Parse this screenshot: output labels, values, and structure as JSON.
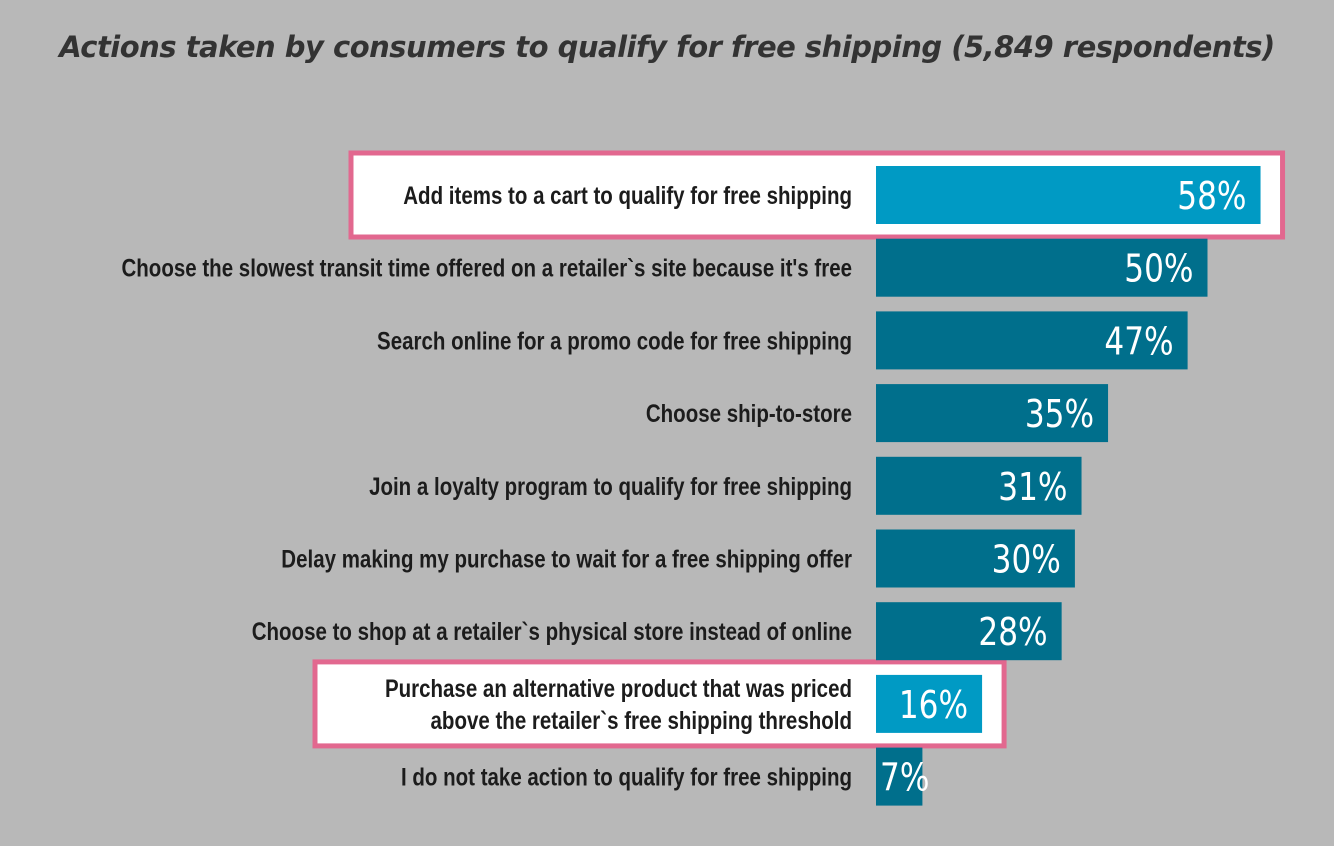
{
  "chart_data": {
    "type": "bar",
    "orientation": "horizontal",
    "title": "Actions taken by consumers to qualify for free shipping (5,849 respondents)",
    "categories": [
      "Add items to a cart to qualify for free shipping",
      "Choose the slowest transit time offered on a retailer`s site because it's free",
      "Search online for a promo code for free shipping",
      "Choose ship-to-store",
      "Join a loyalty program to qualify for free shipping",
      "Delay making my purchase to wait for a free shipping offer",
      "Choose to shop at a retailer`s physical store instead of online",
      "Purchase an alternative product that was priced above the retailer`s free shipping threshold",
      "I do not take action to qualify for free shipping"
    ],
    "label_lines": [
      [
        "Add items to a cart to qualify for free shipping"
      ],
      [
        "Choose the slowest transit time offered on a retailer`s site because it's free"
      ],
      [
        "Search online for a promo code for free shipping"
      ],
      [
        "Choose ship-to-store"
      ],
      [
        "Join a loyalty program to qualify for free shipping"
      ],
      [
        "Delay making my purchase to wait for a free shipping offer"
      ],
      [
        "Choose to shop at a retailer`s physical store instead of online"
      ],
      [
        "Purchase an alternative product that was priced",
        "above the retailer`s free shipping threshold"
      ],
      [
        "I do not take action to qualify for free shipping"
      ]
    ],
    "values": [
      58,
      50,
      47,
      35,
      31,
      30,
      28,
      16,
      7
    ],
    "value_labels": [
      "58%",
      "50%",
      "47%",
      "35%",
      "31%",
      "30%",
      "28%",
      "16%",
      "7%"
    ],
    "highlighted": [
      0,
      7
    ],
    "xlabel": "",
    "ylabel": "",
    "grid": false,
    "legend": "none",
    "colors": {
      "bar": "#006f8c",
      "highlight_bar": "#009ac4",
      "highlight_border": "#e2688f",
      "highlight_fill": "#ffffff",
      "background": "#b8b8b8"
    }
  }
}
